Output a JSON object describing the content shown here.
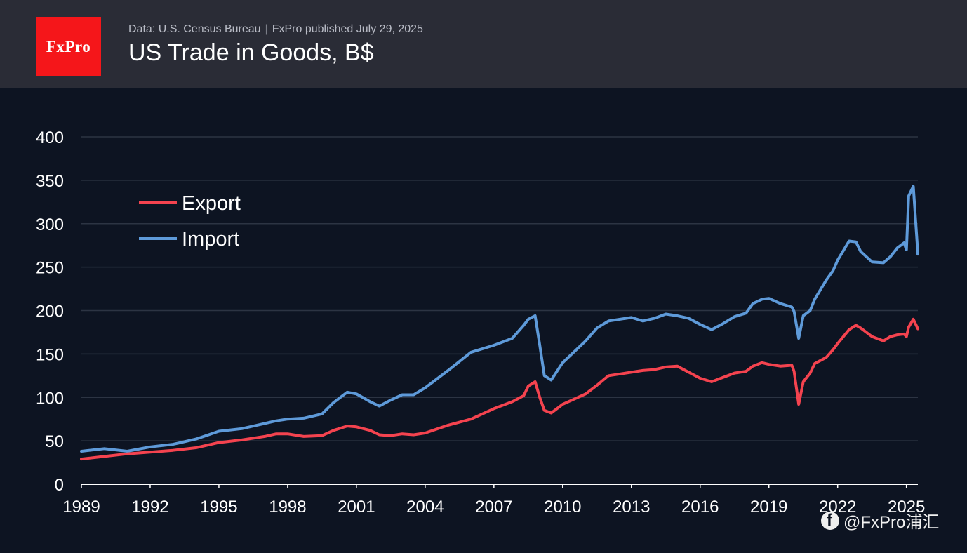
{
  "header": {
    "logo_text": "FxPro",
    "source": "Data: U.S. Census Bureau",
    "separator": "|",
    "published": "FxPro published July 29, 2025",
    "title": "US Trade in Goods, B$"
  },
  "watermark": {
    "icon": "facebook-icon",
    "text": "@FxPro浦汇"
  },
  "colors": {
    "background": "#0d1422",
    "header_bg": "#2a2c36",
    "brand_red": "#f5161a",
    "export": "#f4434f",
    "import": "#5e9ad9",
    "grid": "#2c3443",
    "axis_text": "#ffffff"
  },
  "chart_data": {
    "type": "line",
    "title": "US Trade in Goods, B$",
    "xlabel": "",
    "ylabel": "",
    "xlim": [
      1989.0,
      2025.5
    ],
    "ylim": [
      0,
      400
    ],
    "y_ticks": [
      0,
      50,
      100,
      150,
      200,
      250,
      300,
      350,
      400
    ],
    "x_ticks": [
      1989,
      1992,
      1995,
      1998,
      2001,
      2004,
      2007,
      2010,
      2013,
      2016,
      2019,
      2022,
      2025
    ],
    "x_tick_labels": [
      "1989",
      "1992",
      "1995",
      "1998",
      "2001",
      "2004",
      "2007",
      "2010",
      "2013",
      "2016",
      "2019",
      "2022",
      "2025"
    ],
    "grid": "horizontal",
    "legend_position": "top-left",
    "series": [
      {
        "name": "Export",
        "color": "#f4434f",
        "x": [
          1989.0,
          1990.0,
          1991.0,
          1992.0,
          1993.0,
          1994.0,
          1995.0,
          1996.0,
          1997.0,
          1997.5,
          1998.0,
          1998.7,
          1999.5,
          2000.0,
          2000.6,
          2001.0,
          2001.6,
          2002.0,
          2002.5,
          2003.0,
          2003.5,
          2004.0,
          2005.0,
          2006.0,
          2007.0,
          2007.8,
          2008.3,
          2008.5,
          2008.8,
          2009.0,
          2009.2,
          2009.5,
          2010.0,
          2011.0,
          2011.5,
          2012.0,
          2013.0,
          2013.5,
          2014.0,
          2014.5,
          2015.0,
          2015.5,
          2016.0,
          2016.5,
          2017.0,
          2017.5,
          2018.0,
          2018.3,
          2018.7,
          2019.0,
          2019.5,
          2020.0,
          2020.1,
          2020.3,
          2020.5,
          2020.8,
          2021.0,
          2021.5,
          2021.8,
          2022.0,
          2022.5,
          2022.8,
          2023.0,
          2023.5,
          2024.0,
          2024.3,
          2024.6,
          2024.9,
          2025.0,
          2025.1,
          2025.3,
          2025.5
        ],
        "values": [
          29,
          32,
          35,
          37,
          39,
          42,
          48,
          51,
          55,
          58,
          58,
          55,
          56,
          62,
          67,
          66,
          62,
          57,
          56,
          58,
          57,
          59,
          68,
          75,
          87,
          95,
          102,
          113,
          118,
          100,
          85,
          82,
          92,
          104,
          114,
          125,
          129,
          131,
          132,
          135,
          136,
          129,
          122,
          118,
          123,
          128,
          130,
          136,
          140,
          138,
          136,
          137,
          130,
          92,
          118,
          128,
          139,
          146,
          155,
          162,
          178,
          183,
          180,
          170,
          165,
          170,
          172,
          173,
          170,
          181,
          190,
          179
        ]
      },
      {
        "name": "Import",
        "color": "#5e9ad9",
        "x": [
          1989.0,
          1990.0,
          1991.0,
          1992.0,
          1993.0,
          1994.0,
          1995.0,
          1996.0,
          1997.0,
          1997.5,
          1998.0,
          1998.7,
          1999.5,
          2000.0,
          2000.6,
          2001.0,
          2001.6,
          2002.0,
          2002.5,
          2003.0,
          2003.5,
          2004.0,
          2005.0,
          2006.0,
          2007.0,
          2007.8,
          2008.3,
          2008.5,
          2008.8,
          2009.0,
          2009.2,
          2009.5,
          2010.0,
          2011.0,
          2011.5,
          2012.0,
          2013.0,
          2013.5,
          2014.0,
          2014.5,
          2015.0,
          2015.5,
          2016.0,
          2016.5,
          2017.0,
          2017.5,
          2018.0,
          2018.3,
          2018.7,
          2019.0,
          2019.5,
          2020.0,
          2020.1,
          2020.3,
          2020.5,
          2020.8,
          2021.0,
          2021.5,
          2021.8,
          2022.0,
          2022.5,
          2022.8,
          2023.0,
          2023.5,
          2024.0,
          2024.3,
          2024.6,
          2024.9,
          2025.0,
          2025.1,
          2025.3,
          2025.5
        ],
        "values": [
          38,
          41,
          38,
          43,
          46,
          52,
          61,
          64,
          70,
          73,
          75,
          76,
          81,
          94,
          106,
          104,
          95,
          90,
          97,
          103,
          103,
          111,
          131,
          152,
          160,
          168,
          183,
          190,
          194,
          160,
          125,
          120,
          140,
          165,
          180,
          188,
          192,
          188,
          191,
          196,
          194,
          191,
          184,
          178,
          185,
          193,
          197,
          208,
          213,
          214,
          208,
          204,
          199,
          168,
          194,
          200,
          213,
          235,
          246,
          258,
          280,
          279,
          268,
          256,
          255,
          262,
          272,
          278,
          270,
          332,
          343,
          265
        ]
      }
    ]
  }
}
